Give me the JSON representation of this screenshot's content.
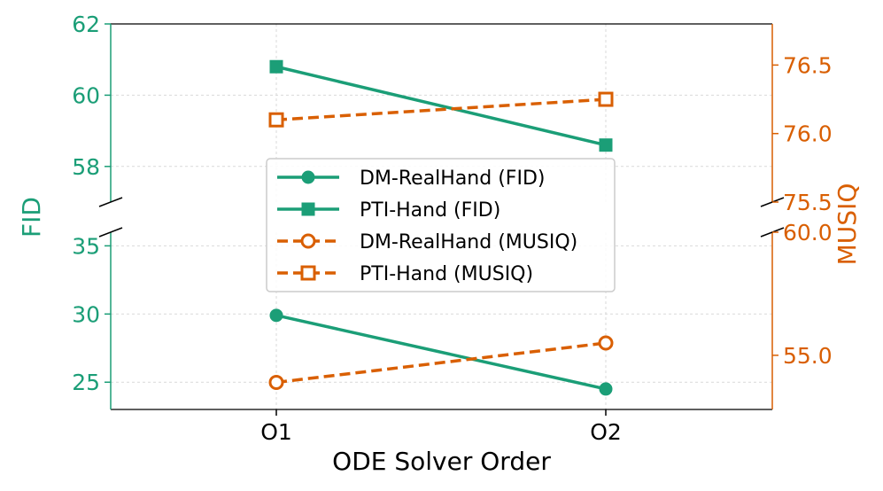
{
  "chart_data": {
    "type": "line",
    "xlabel": "ODE Solver Order",
    "categories": [
      "O1",
      "O2"
    ],
    "left_axis": {
      "label": "FID",
      "color": "#1b9e77",
      "broken": true,
      "upper_range": [
        57,
        62
      ],
      "upper_ticks": [
        "58",
        "60",
        "62"
      ],
      "lower_range": [
        23,
        36
      ],
      "lower_ticks": [
        "25",
        "30",
        "35"
      ]
    },
    "right_axis": {
      "label": "MUSIQ",
      "color": "#d95f02",
      "broken": true,
      "upper_range": [
        75.5,
        76.8
      ],
      "upper_ticks": [
        "75.5",
        "76.0",
        "76.5"
      ],
      "lower_range": [
        52.8,
        60.0
      ],
      "lower_ticks": [
        "55.0",
        "60.0"
      ]
    },
    "series": [
      {
        "name": "DM-RealHand (FID)",
        "axis": "left",
        "segment": "lower",
        "marker": "circle",
        "filled": true,
        "dashed": false,
        "color": "#1b9e77",
        "values": [
          29.9,
          24.5
        ]
      },
      {
        "name": "PTI-Hand (FID)",
        "axis": "left",
        "segment": "upper",
        "marker": "square",
        "filled": true,
        "dashed": false,
        "color": "#1b9e77",
        "values": [
          60.8,
          58.6
        ]
      },
      {
        "name": "DM-RealHand (MUSIQ)",
        "axis": "right",
        "segment": "lower",
        "marker": "circle",
        "filled": false,
        "dashed": true,
        "color": "#d95f02",
        "values": [
          53.9,
          55.5
        ]
      },
      {
        "name": "PTI-Hand (MUSIQ)",
        "axis": "right",
        "segment": "upper",
        "marker": "square",
        "filled": false,
        "dashed": true,
        "color": "#d95f02",
        "values": [
          76.1,
          76.25
        ]
      }
    ],
    "grid": true,
    "legend_position": "center"
  }
}
